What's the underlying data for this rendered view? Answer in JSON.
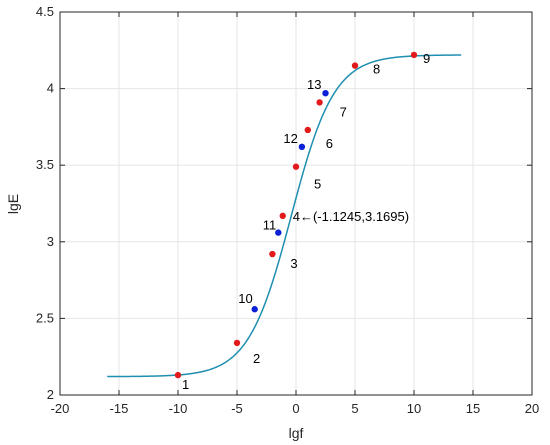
{
  "chart_data": {
    "type": "line",
    "xlabel": "lgf",
    "ylabel": "lgE",
    "xlim": [
      -20,
      20
    ],
    "ylim": [
      2,
      4.5
    ],
    "xticks": [
      -20,
      -15,
      -10,
      -5,
      0,
      5,
      10,
      15,
      20
    ],
    "yticks": [
      2,
      2.5,
      3,
      3.5,
      4,
      4.5
    ],
    "grid": true,
    "colors": {
      "curve": "#1f8fb0",
      "red_point": "#e31a1c",
      "blue_point": "#0a1fd6"
    },
    "curve": {
      "x_start": -16,
      "x_end": 14,
      "low": 2.12,
      "high": 4.22,
      "center": -0.4,
      "slope": 0.55
    },
    "points": [
      {
        "label": "1",
        "x": -10,
        "y": 2.13,
        "color": "red"
      },
      {
        "label": "2",
        "x": -5,
        "y": 2.34,
        "color": "red"
      },
      {
        "label": "3",
        "x": -2,
        "y": 2.92,
        "color": "red"
      },
      {
        "label": "4",
        "x": -1.1245,
        "y": 3.1695,
        "color": "red",
        "annotation": "4←(-1.1245,3.1695)"
      },
      {
        "label": "5",
        "x": 0,
        "y": 3.49,
        "color": "red"
      },
      {
        "label": "6",
        "x": 1,
        "y": 3.73,
        "color": "red"
      },
      {
        "label": "7",
        "x": 2,
        "y": 3.91,
        "color": "red"
      },
      {
        "label": "8",
        "x": 5,
        "y": 4.15,
        "color": "red"
      },
      {
        "label": "9",
        "x": 10,
        "y": 4.22,
        "color": "red"
      },
      {
        "label": "10",
        "x": -3.5,
        "y": 2.56,
        "color": "blue"
      },
      {
        "label": "11",
        "x": -1.5,
        "y": 3.06,
        "color": "blue"
      },
      {
        "label": "12",
        "x": 0.5,
        "y": 3.62,
        "color": "blue"
      },
      {
        "label": "13",
        "x": 2.5,
        "y": 3.97,
        "color": "blue"
      }
    ]
  }
}
